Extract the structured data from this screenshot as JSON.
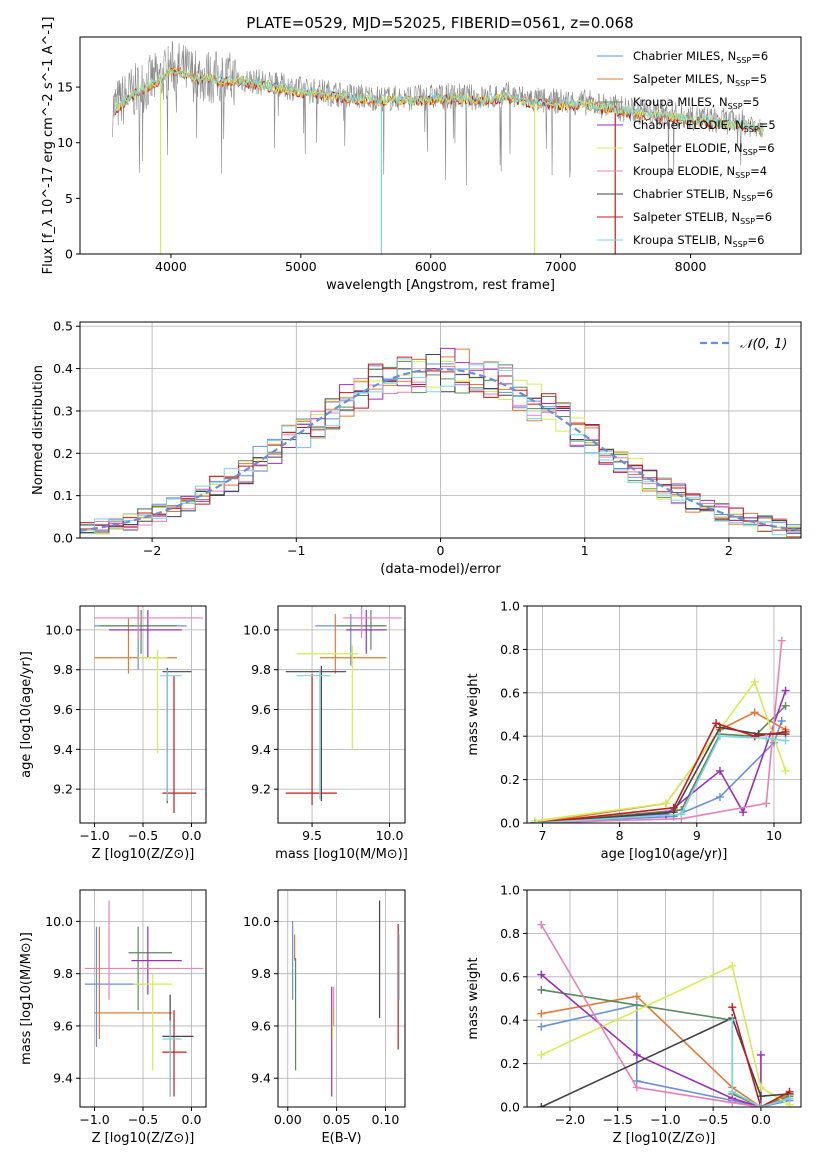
{
  "title": "PLATE=0529, MJD=52025, FIBERID=0561, z=0.068",
  "colors": [
    "#6a8fd8",
    "#e07b39",
    "#5b8a5b",
    "#9b30b5",
    "#d5ec55",
    "#e881b8",
    "#444444",
    "#c61a1a",
    "#7fd3e0"
  ],
  "chart_data": [
    {
      "id": "spectrum",
      "type": "line",
      "title": "PLATE=0529, MJD=52025, FIBERID=0561, z=0.068",
      "xlabel": "wavelength [Angstrom, rest frame]",
      "ylabel": "Flux [f_λ 10^-17 erg cm^-2 s^-1 A^-1]",
      "xlim": [
        3300,
        8850
      ],
      "ylim": [
        0,
        19.5
      ],
      "xticks": [
        "4000",
        "5000",
        "6000",
        "7000",
        "8000"
      ],
      "yticks": [
        "0",
        "5",
        "10",
        "15"
      ],
      "grid": false,
      "legend_position": "top-right",
      "legend": [
        "Chabrier MILES, N_SSP=6",
        "Salpeter MILES, N_SSP=5",
        "Kroupa MILES, N_SSP=5",
        "Chabrier ELODIE, N_SSP=5",
        "Salpeter ELODIE, N_SSP=6",
        "Kroupa ELODIE, N_SSP=4",
        "Chabrier STELIB, N_SSP=6",
        "Salpeter STELIB, N_SSP=6",
        "Kroupa STELIB, N_SSP=6"
      ],
      "data_series": {
        "name": "data",
        "color": "#888888",
        "x": [
          3550,
          3700,
          3850,
          3950,
          4000,
          4100,
          4200,
          4400,
          4600,
          4800,
          5000,
          5200,
          5400,
          5600,
          5800,
          6000,
          6200,
          6400,
          6600,
          6800,
          7000,
          7200,
          7400,
          7600,
          7800,
          8000,
          8200,
          8400,
          8560
        ],
        "y": [
          13.0,
          14.5,
          15.5,
          16.0,
          16.8,
          16.5,
          16.0,
          15.8,
          15.6,
          15.2,
          14.8,
          14.5,
          14.2,
          14.0,
          14.0,
          14.1,
          14.2,
          14.0,
          14.3,
          13.8,
          13.7,
          13.6,
          13.2,
          12.8,
          12.6,
          12.3,
          12.0,
          11.8,
          11.5
        ]
      },
      "model_color": "#7fd3e0",
      "model_drop_x": [
        3920,
        5620,
        6800,
        7420
      ]
    },
    {
      "id": "residuals",
      "type": "line",
      "xlabel": "(data-model)/error",
      "ylabel": "Normed distribution",
      "xlim": [
        -2.5,
        2.5
      ],
      "ylim": [
        0,
        0.51
      ],
      "xticks": [
        "−2",
        "−1",
        "0",
        "1",
        "2"
      ],
      "yticks": [
        "0.0",
        "0.1",
        "0.2",
        "0.3",
        "0.4",
        "0.5"
      ],
      "grid": true,
      "legend_position": "top-right",
      "legend": [
        "𝒩(0, 1)"
      ],
      "gaussian": {
        "mean": 0,
        "sigma": 1
      },
      "hist_bins": [
        -2.5,
        2.5,
        50
      ]
    },
    {
      "id": "z-age",
      "type": "scatter",
      "xlabel": "Z [log10(Z/Z⊙)]",
      "ylabel": "age  [log10(age/yr)]",
      "xlim": [
        -1.15,
        0.15
      ],
      "ylim": [
        9.03,
        10.12
      ],
      "xticks": [
        "−1.0",
        "−0.5",
        "0.0"
      ],
      "yticks": [
        "9.2",
        "9.4",
        "9.6",
        "9.8",
        "10.0"
      ],
      "grid": true,
      "points": [
        {
          "x": -0.55,
          "y": 10.02,
          "xe": [
            -1.0,
            -0.05
          ],
          "ye": [
            9.8,
            10.1
          ]
        },
        {
          "x": -0.65,
          "y": 9.86,
          "xe": [
            -1.0,
            -0.15
          ],
          "ye": [
            9.78,
            10.06
          ]
        },
        {
          "x": -0.52,
          "y": 10.02,
          "xe": [
            -0.95,
            -0.15
          ],
          "ye": [
            9.88,
            10.1
          ]
        },
        {
          "x": -0.45,
          "y": 10.0,
          "xe": [
            -0.85,
            -0.1
          ],
          "ye": [
            9.86,
            10.1
          ]
        },
        {
          "x": -0.35,
          "y": 9.86,
          "xe": [
            -0.55,
            -0.25
          ],
          "ye": [
            9.38,
            9.9
          ]
        },
        {
          "x": -0.55,
          "y": 10.06,
          "xe": [
            -1.0,
            0.12
          ],
          "ye": [
            9.95,
            10.12
          ]
        },
        {
          "x": -0.25,
          "y": 9.79,
          "xe": [
            -0.3,
            0.0
          ],
          "ye": [
            9.13,
            9.81
          ]
        },
        {
          "x": -0.18,
          "y": 9.18,
          "xe": [
            -0.3,
            0.05
          ],
          "ye": [
            9.08,
            9.77
          ]
        },
        {
          "x": -0.25,
          "y": 9.77,
          "xe": [
            -0.32,
            -0.1
          ],
          "ye": [
            9.14,
            9.8
          ]
        }
      ]
    },
    {
      "id": "mass-age",
      "type": "scatter",
      "xlabel": "mass [log10(M/M⊙)]",
      "xlim": [
        9.28,
        10.1
      ],
      "ylim": [
        9.03,
        10.12
      ],
      "xticks": [
        "9.5",
        "10.0"
      ],
      "yticks": [
        "9.2",
        "9.4",
        "9.6",
        "9.8",
        "10.0"
      ],
      "grid": true,
      "points": [
        {
          "x": 9.75,
          "y": 10.02,
          "xe": [
            9.52,
            9.98
          ],
          "ye": [
            9.82,
            10.08
          ]
        },
        {
          "x": 9.65,
          "y": 9.86,
          "xe": [
            9.55,
            9.98
          ],
          "ye": [
            9.78,
            10.08
          ]
        },
        {
          "x": 9.88,
          "y": 10.02,
          "xe": [
            9.66,
            9.98
          ],
          "ye": [
            9.9,
            10.1
          ]
        },
        {
          "x": 9.85,
          "y": 10.0,
          "xe": [
            9.72,
            9.98
          ],
          "ye": [
            9.88,
            10.1
          ]
        },
        {
          "x": 9.76,
          "y": 9.88,
          "xe": [
            9.4,
            9.8
          ],
          "ye": [
            9.4,
            9.92
          ]
        },
        {
          "x": 9.82,
          "y": 10.06,
          "xe": [
            9.7,
            10.08
          ],
          "ye": [
            9.96,
            10.12
          ]
        },
        {
          "x": 9.56,
          "y": 9.79,
          "xe": [
            9.33,
            9.72
          ],
          "ye": [
            9.14,
            9.82
          ]
        },
        {
          "x": 9.5,
          "y": 9.18,
          "xe": [
            9.33,
            9.66
          ],
          "ye": [
            9.12,
            9.78
          ]
        },
        {
          "x": 9.55,
          "y": 9.77,
          "xe": [
            9.4,
            9.62
          ],
          "ye": [
            9.15,
            9.8
          ]
        }
      ]
    },
    {
      "id": "age-weight",
      "type": "line",
      "xlabel": "age  [log10(age/yr)]",
      "ylabel": "mass weight",
      "xlim": [
        6.8,
        10.35
      ],
      "ylim": [
        0,
        1.0
      ],
      "xticks": [
        "7",
        "8",
        "9",
        "10"
      ],
      "yticks": [
        "0.0",
        "0.2",
        "0.4",
        "0.6",
        "0.8",
        "1.0"
      ],
      "grid": true,
      "series": [
        {
          "x": [
            6.9,
            8.7,
            9.3,
            10.0,
            10.1
          ],
          "y": [
            0.0,
            0.03,
            0.12,
            0.37,
            0.47
          ]
        },
        {
          "x": [
            6.9,
            8.6,
            9.3,
            9.75,
            10.15
          ],
          "y": [
            0.0,
            0.09,
            0.43,
            0.51,
            0.43
          ]
        },
        {
          "x": [
            6.9,
            8.8,
            9.3,
            9.75,
            10.15
          ],
          "y": [
            0.0,
            0.06,
            0.41,
            0.4,
            0.54
          ]
        },
        {
          "x": [
            6.9,
            8.6,
            9.3,
            9.6,
            10.15
          ],
          "y": [
            0.0,
            0.04,
            0.24,
            0.05,
            0.61
          ]
        },
        {
          "x": [
            6.9,
            8.6,
            9.75,
            10.15
          ],
          "y": [
            0.01,
            0.09,
            0.65,
            0.24
          ]
        },
        {
          "x": [
            6.9,
            8.8,
            9.9,
            10.1
          ],
          "y": [
            0.0,
            0.02,
            0.09,
            0.84
          ]
        },
        {
          "x": [
            6.9,
            8.7,
            9.3,
            9.8,
            10.15
          ],
          "y": [
            0.0,
            0.05,
            0.44,
            0.41,
            0.41
          ]
        },
        {
          "x": [
            6.9,
            8.7,
            9.25,
            9.75,
            10.15
          ],
          "y": [
            0.0,
            0.07,
            0.46,
            0.4,
            0.42
          ]
        },
        {
          "x": [
            6.9,
            8.8,
            9.3,
            9.9,
            10.15
          ],
          "y": [
            0.0,
            0.04,
            0.4,
            0.39,
            0.38
          ]
        }
      ]
    },
    {
      "id": "z-mass",
      "type": "scatter",
      "xlabel": "Z [log10(Z/Z⊙)]",
      "ylabel": "mass [log10(M/M⊙)]",
      "xlim": [
        -1.15,
        0.15
      ],
      "ylim": [
        9.29,
        10.12
      ],
      "xticks": [
        "−1.0",
        "−0.5",
        "0.0"
      ],
      "yticks": [
        "9.4",
        "9.6",
        "9.8",
        "10.0"
      ],
      "grid": true,
      "points": [
        {
          "x": -0.98,
          "y": 9.76,
          "xe": [
            -1.1,
            -0.5
          ],
          "ye": [
            9.52,
            9.98
          ]
        },
        {
          "x": -0.95,
          "y": 9.65,
          "xe": [
            -1.0,
            -0.2
          ],
          "ye": [
            9.55,
            9.98
          ]
        },
        {
          "x": -0.55,
          "y": 9.88,
          "xe": [
            -0.65,
            -0.2
          ],
          "ye": [
            9.66,
            9.98
          ]
        },
        {
          "x": -0.45,
          "y": 9.85,
          "xe": [
            -0.62,
            -0.1
          ],
          "ye": [
            9.72,
            9.98
          ]
        },
        {
          "x": -0.4,
          "y": 9.76,
          "xe": [
            -0.6,
            -0.2
          ],
          "ye": [
            9.43,
            9.8
          ]
        },
        {
          "x": -0.85,
          "y": 9.82,
          "xe": [
            -1.1,
            0.12
          ],
          "ye": [
            9.7,
            10.08
          ]
        },
        {
          "x": -0.22,
          "y": 9.56,
          "xe": [
            -0.3,
            0.02
          ],
          "ye": [
            9.33,
            9.72
          ]
        },
        {
          "x": -0.18,
          "y": 9.5,
          "xe": [
            -0.3,
            -0.05
          ],
          "ye": [
            9.33,
            9.66
          ]
        },
        {
          "x": -0.22,
          "y": 9.55,
          "xe": [
            -0.3,
            -0.1
          ],
          "ye": [
            9.33,
            9.62
          ]
        }
      ]
    },
    {
      "id": "ebv",
      "type": "scatter",
      "xlabel": "E(B-V)",
      "xlim": [
        -0.01,
        0.12
      ],
      "ylim": [
        9.29,
        10.12
      ],
      "xticks": [
        "0.00",
        "0.05",
        "0.10"
      ],
      "yticks": [
        "9.4",
        "9.6",
        "9.8",
        "10.0"
      ],
      "grid": true,
      "segments": [
        {
          "x": 0.005,
          "y0": 9.7,
          "y1": 10.0
        },
        {
          "x": 0.007,
          "y0": 9.85,
          "y1": 9.95
        },
        {
          "x": 0.008,
          "y0": 9.43,
          "y1": 9.86
        },
        {
          "x": 0.045,
          "y0": 9.33,
          "y1": 9.75
        },
        {
          "x": 0.046,
          "y0": 9.55,
          "y1": 9.67
        },
        {
          "x": 0.047,
          "y0": 9.6,
          "y1": 9.75
        },
        {
          "x": 0.094,
          "y0": 9.63,
          "y1": 10.08
        },
        {
          "x": 0.113,
          "y0": 9.51,
          "y1": 9.99
        },
        {
          "x": 0.114,
          "y0": 9.7,
          "y1": 9.95
        }
      ]
    },
    {
      "id": "z-weight",
      "type": "line",
      "xlabel": "Z [log10(Z/Z⊙)]",
      "ylabel": "mass weight",
      "xlim": [
        -2.45,
        0.42
      ],
      "ylim": [
        0,
        1.0
      ],
      "xticks": [
        "−2.0",
        "−1.5",
        "−1.0",
        "−0.5",
        "0.0"
      ],
      "yticks": [
        "0.0",
        "0.2",
        "0.4",
        "0.6",
        "0.8",
        "1.0"
      ],
      "grid": true,
      "series": [
        {
          "x": [
            -2.3,
            -1.3,
            -1.3,
            -0.3,
            0.0,
            0.3
          ],
          "y": [
            0.37,
            0.47,
            0.12,
            0.03,
            0.0,
            0.03
          ]
        },
        {
          "x": [
            -2.3,
            -1.3,
            -0.3,
            0.0,
            0.3
          ],
          "y": [
            0.43,
            0.51,
            0.09,
            0.0,
            0.06
          ]
        },
        {
          "x": [
            -2.3,
            -0.3,
            -0.3,
            0.0,
            0.3
          ],
          "y": [
            0.54,
            0.4,
            0.06,
            0.0,
            0.05
          ]
        },
        {
          "x": [
            -2.3,
            -1.3,
            -0.3,
            0.0,
            0.0
          ],
          "y": [
            0.61,
            0.24,
            0.04,
            0.0,
            0.24
          ]
        },
        {
          "x": [
            -2.3,
            -0.3,
            0.0,
            0.3
          ],
          "y": [
            0.24,
            0.65,
            0.09,
            0.01
          ]
        },
        {
          "x": [
            -2.3,
            -1.3,
            -0.3,
            0.0,
            0.3
          ],
          "y": [
            0.84,
            0.09,
            0.02,
            0.0,
            0.04
          ]
        },
        {
          "x": [
            -2.3,
            -0.3,
            0.0,
            0.3
          ],
          "y": [
            0.0,
            0.41,
            0.05,
            0.06
          ]
        },
        {
          "x": [
            -0.3,
            0.0,
            0.3
          ],
          "y": [
            0.46,
            0.0,
            0.07
          ]
        },
        {
          "x": [
            -0.3,
            -0.3,
            0.0,
            0.3
          ],
          "y": [
            0.4,
            0.07,
            0.0,
            0.04
          ]
        }
      ]
    }
  ]
}
